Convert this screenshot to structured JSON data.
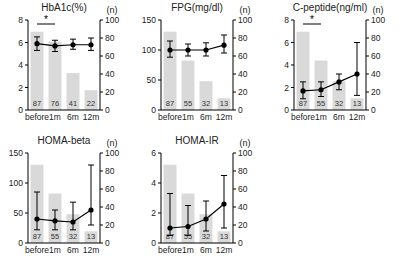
{
  "chart_data": [
    {
      "type": "bar",
      "title": "HbA1c(%)",
      "categories": [
        "before",
        "1m",
        "6m",
        "12m"
      ],
      "ylim": [
        0,
        8
      ],
      "yticks": [
        0,
        2,
        4,
        6,
        8
      ],
      "y2lim": [
        0,
        100
      ],
      "y2ticks": [
        0,
        20,
        40,
        60,
        80,
        100
      ],
      "y2label": "(n)",
      "grid": false,
      "series": [
        {
          "type": "bar",
          "axis": "y2",
          "color": "#d9d9d9",
          "data_labels": true,
          "values": [
            87,
            76,
            41,
            22
          ]
        },
        {
          "type": "line",
          "color": "#000000",
          "marker": "circle",
          "values": [
            5.9,
            5.7,
            5.8,
            5.8
          ],
          "lower": [
            5.3,
            5.2,
            5.4,
            5.3
          ],
          "upper": [
            6.5,
            6.2,
            6.3,
            6.4
          ]
        }
      ],
      "annotations": [
        {
          "text": "*",
          "from": 0,
          "to": 1
        }
      ]
    },
    {
      "type": "bar",
      "title": "FPG(mg/dl)",
      "categories": [
        "before",
        "1m",
        "6m",
        "12m"
      ],
      "ylim": [
        0,
        150
      ],
      "yticks": [
        0,
        50,
        100,
        150
      ],
      "y2lim": [
        0,
        100
      ],
      "y2ticks": [
        0,
        20,
        40,
        60,
        80,
        100
      ],
      "y2label": "(n)",
      "grid": false,
      "series": [
        {
          "type": "bar",
          "axis": "y2",
          "color": "#d9d9d9",
          "data_labels": true,
          "values": [
            87,
            55,
            32,
            13
          ]
        },
        {
          "type": "line",
          "color": "#000000",
          "marker": "circle",
          "values": [
            100,
            100,
            100,
            108
          ],
          "lower": [
            88,
            90,
            90,
            95
          ],
          "upper": [
            115,
            110,
            112,
            125
          ]
        }
      ],
      "annotations": []
    },
    {
      "type": "bar",
      "title": "C-peptide(ng/ml)",
      "categories": [
        "before",
        "1m",
        "6m",
        "12m"
      ],
      "ylim": [
        0,
        8
      ],
      "yticks": [
        0,
        2,
        4,
        6,
        8
      ],
      "y2lim": [
        0,
        100
      ],
      "y2ticks": [
        0,
        20,
        40,
        60,
        80,
        100
      ],
      "y2label": "(n)",
      "grid": false,
      "series": [
        {
          "type": "bar",
          "axis": "y2",
          "color": "#d9d9d9",
          "data_labels": true,
          "values": [
            87,
            55,
            32,
            13
          ]
        },
        {
          "type": "line",
          "color": "#000000",
          "marker": "circle",
          "values": [
            1.7,
            1.8,
            2.5,
            3.2
          ],
          "lower": [
            1.0,
            1.2,
            1.8,
            1.3
          ],
          "upper": [
            2.5,
            2.5,
            3.2,
            6.0
          ]
        }
      ],
      "annotations": [
        {
          "text": "*",
          "from": 0,
          "to": 1
        }
      ]
    },
    {
      "type": "bar",
      "title": "HOMA-beta",
      "categories": [
        "before",
        "1m",
        "6m",
        "12m"
      ],
      "ylim": [
        0,
        150
      ],
      "yticks": [
        0,
        50,
        100,
        150
      ],
      "y2lim": [
        0,
        100
      ],
      "y2ticks": [
        0,
        20,
        40,
        60,
        80,
        100
      ],
      "y2label": "(n)",
      "grid": false,
      "series": [
        {
          "type": "bar",
          "axis": "y2",
          "color": "#d9d9d9",
          "data_labels": true,
          "values": [
            87,
            55,
            32,
            13
          ]
        },
        {
          "type": "line",
          "color": "#000000",
          "marker": "circle",
          "values": [
            40,
            37,
            35,
            55
          ],
          "lower": [
            22,
            22,
            22,
            30
          ],
          "upper": [
            85,
            55,
            68,
            130
          ]
        }
      ],
      "annotations": []
    },
    {
      "type": "bar",
      "title": "HOMA-IR",
      "categories": [
        "before",
        "1m",
        "6m",
        "12m"
      ],
      "ylim": [
        0,
        6
      ],
      "yticks": [
        0,
        2,
        4,
        6
      ],
      "y2lim": [
        0,
        100
      ],
      "y2ticks": [
        0,
        20,
        40,
        60,
        80,
        100
      ],
      "y2label": "(n)",
      "grid": false,
      "series": [
        {
          "type": "bar",
          "axis": "y2",
          "color": "#d9d9d9",
          "data_labels": true,
          "values": [
            87,
            55,
            32,
            13
          ]
        },
        {
          "type": "line",
          "color": "#000000",
          "marker": "circle",
          "values": [
            1.0,
            1.1,
            1.6,
            2.6
          ],
          "lower": [
            0.5,
            0.5,
            0.8,
            1.0
          ],
          "upper": [
            3.3,
            2.5,
            2.8,
            4.5
          ]
        }
      ],
      "annotations": []
    }
  ]
}
